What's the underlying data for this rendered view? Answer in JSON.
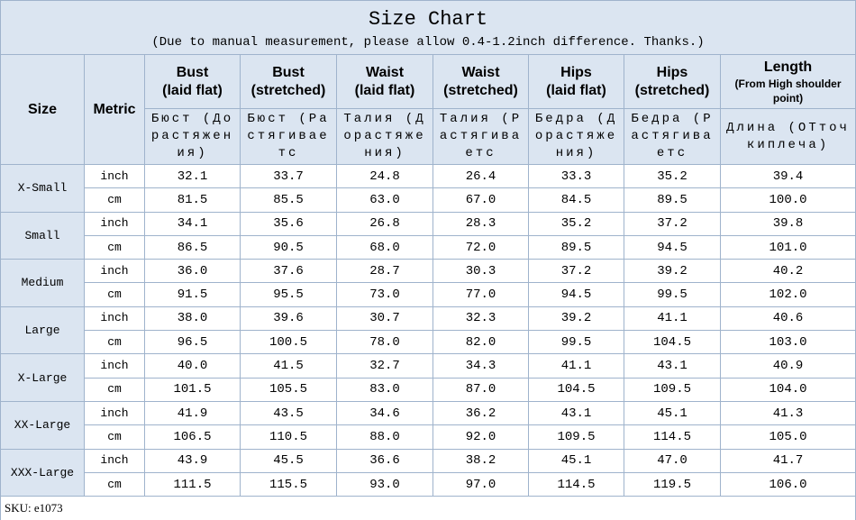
{
  "title": "Size Chart",
  "subtitle": "(Due to manual measurement, please allow 0.4-1.2inch difference. Thanks.)",
  "table": {
    "header": [
      {
        "name": "Size"
      },
      {
        "name": "Metric"
      },
      {
        "name": "Bust",
        "note": "(laid flat)"
      },
      {
        "name": "Bust",
        "note": "(stretched)"
      },
      {
        "name": "Waist",
        "note": "(laid flat)"
      },
      {
        "name": "Waist",
        "note": "(stretched)"
      },
      {
        "name": "Hips",
        "note": "(laid flat)"
      },
      {
        "name": "Hips",
        "note": "(stretched)"
      },
      {
        "name": "Length",
        "note": "(From High shoulder point)"
      }
    ],
    "subheader": [
      "Бюст (Дорастяжения)",
      "Бюст (Растягиваетс",
      "Талия (Дорастяжения)",
      "Талия (Растягиваетс",
      "Бедра (Дорастяжения)",
      "Бедра (Растягиваетс",
      "Длина (ОТточкиплеча)"
    ],
    "rows": [
      {
        "size": "X-Small",
        "lines": [
          {
            "metric": "inch",
            "values": [
              "32.1",
              "33.7",
              "24.8",
              "26.4",
              "33.3",
              "35.2",
              "39.4"
            ]
          },
          {
            "metric": "cm",
            "values": [
              "81.5",
              "85.5",
              "63.0",
              "67.0",
              "84.5",
              "89.5",
              "100.0"
            ]
          }
        ]
      },
      {
        "size": "Small",
        "lines": [
          {
            "metric": "inch",
            "values": [
              "34.1",
              "35.6",
              "26.8",
              "28.3",
              "35.2",
              "37.2",
              "39.8"
            ]
          },
          {
            "metric": "cm",
            "values": [
              "86.5",
              "90.5",
              "68.0",
              "72.0",
              "89.5",
              "94.5",
              "101.0"
            ]
          }
        ]
      },
      {
        "size": "Medium",
        "lines": [
          {
            "metric": "inch",
            "values": [
              "36.0",
              "37.6",
              "28.7",
              "30.3",
              "37.2",
              "39.2",
              "40.2"
            ]
          },
          {
            "metric": "cm",
            "values": [
              "91.5",
              "95.5",
              "73.0",
              "77.0",
              "94.5",
              "99.5",
              "102.0"
            ]
          }
        ]
      },
      {
        "size": "Large",
        "lines": [
          {
            "metric": "inch",
            "values": [
              "38.0",
              "39.6",
              "30.7",
              "32.3",
              "39.2",
              "41.1",
              "40.6"
            ]
          },
          {
            "metric": "cm",
            "values": [
              "96.5",
              "100.5",
              "78.0",
              "82.0",
              "99.5",
              "104.5",
              "103.0"
            ]
          }
        ]
      },
      {
        "size": "X-Large",
        "lines": [
          {
            "metric": "inch",
            "values": [
              "40.0",
              "41.5",
              "32.7",
              "34.3",
              "41.1",
              "43.1",
              "40.9"
            ]
          },
          {
            "metric": "cm",
            "values": [
              "101.5",
              "105.5",
              "83.0",
              "87.0",
              "104.5",
              "109.5",
              "104.0"
            ]
          }
        ]
      },
      {
        "size": "XX-Large",
        "lines": [
          {
            "metric": "inch",
            "values": [
              "41.9",
              "43.5",
              "34.6",
              "36.2",
              "43.1",
              "45.1",
              "41.3"
            ]
          },
          {
            "metric": "cm",
            "values": [
              "106.5",
              "110.5",
              "88.0",
              "92.0",
              "109.5",
              "114.5",
              "105.0"
            ]
          }
        ]
      },
      {
        "size": "XXX-Large",
        "lines": [
          {
            "metric": "inch",
            "values": [
              "43.9",
              "45.5",
              "36.6",
              "38.2",
              "45.1",
              "47.0",
              "41.7"
            ]
          },
          {
            "metric": "cm",
            "values": [
              "111.5",
              "115.5",
              "93.0",
              "97.0",
              "114.5",
              "119.5",
              "106.0"
            ]
          }
        ]
      }
    ]
  },
  "sku": "SKU: e1073"
}
